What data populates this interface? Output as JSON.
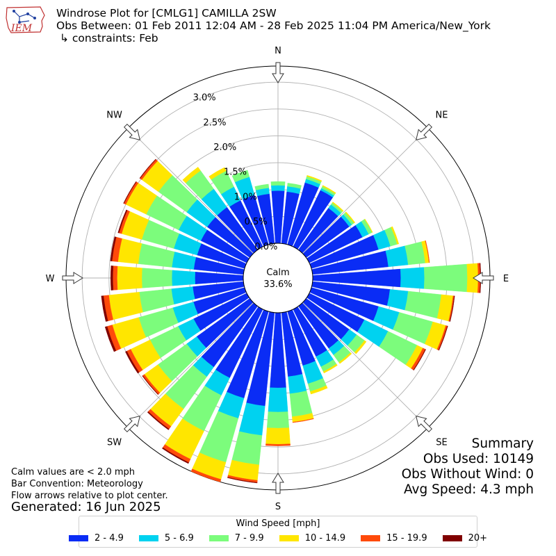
{
  "header": {
    "logo_text": "IEM",
    "title": "Windrose Plot for [CMLG1] CAMILLA 2SW",
    "subtitle": "Obs Between: 01 Feb 2011 12:04 AM - 28 Feb 2025 11:04 PM America/New_York",
    "constraints": "↳ constraints: Feb"
  },
  "notes": {
    "calm_note": "Calm values are < 2.0 mph",
    "bar_convention": "Bar Convention: Meteorology",
    "flow_note": "Flow arrows relative to plot center.",
    "generated": "Generated: 16 Jun 2025"
  },
  "summary": {
    "heading": "Summary",
    "obs_used": "Obs Used: 10149",
    "obs_without_wind": "Obs Without Wind: 0",
    "avg_speed": "Avg Speed: 4.3 mph"
  },
  "legend": {
    "title": "Wind Speed [mph]",
    "items": [
      {
        "label": "2 - 4.9",
        "color": "#0a2cf5"
      },
      {
        "label": "5 - 6.9",
        "color": "#00d2f0"
      },
      {
        "label": "7 - 9.9",
        "color": "#7cfc7c"
      },
      {
        "label": "10 - 14.9",
        "color": "#ffe600"
      },
      {
        "label": "15 - 19.9",
        "color": "#ff4a0a"
      },
      {
        "label": "20+",
        "color": "#800000"
      }
    ]
  },
  "chart_data": {
    "type": "windrose",
    "title": "Windrose Plot for [CMLG1] CAMILLA 2SW",
    "calm_label": "Calm",
    "calm_percent_label": "33.6%",
    "radial_tick_labels": [
      "0.0%",
      "0.5%",
      "1.0%",
      "1.5%",
      "2.0%",
      "2.5%",
      "3.0%"
    ],
    "radial_ticks": [
      0.0,
      0.5,
      1.0,
      1.5,
      2.0,
      2.5,
      3.0
    ],
    "rmax": 3.3,
    "direction_labels": [
      "N",
      "NE",
      "E",
      "SE",
      "S",
      "SW",
      "W",
      "NW"
    ],
    "speed_bins": [
      "2 - 4.9",
      "5 - 6.9",
      "7 - 9.9",
      "10 - 14.9",
      "15 - 19.9",
      "20+"
    ],
    "directions_deg": [
      0,
      10,
      20,
      30,
      40,
      50,
      60,
      70,
      80,
      90,
      100,
      110,
      120,
      130,
      140,
      150,
      160,
      170,
      180,
      190,
      200,
      210,
      220,
      230,
      240,
      250,
      260,
      270,
      280,
      290,
      300,
      310,
      320,
      330,
      340,
      350
    ],
    "cumulative_percent": [
      [
        0.98,
        1.08,
        1.15,
        1.15,
        1.15,
        1.15
      ],
      [
        0.97,
        1.07,
        1.13,
        1.13,
        1.13,
        1.13
      ],
      [
        1.2,
        1.27,
        1.32,
        1.34,
        1.34,
        1.34
      ],
      [
        1.17,
        1.21,
        1.25,
        1.27,
        1.27,
        1.27
      ],
      [
        0.96,
        1.04,
        1.08,
        1.1,
        1.1,
        1.1
      ],
      [
        0.99,
        1.05,
        1.1,
        1.12,
        1.12,
        1.12
      ],
      [
        1.1,
        1.23,
        1.3,
        1.31,
        1.31,
        1.31
      ],
      [
        1.3,
        1.53,
        1.66,
        1.69,
        1.69,
        1.69
      ],
      [
        1.42,
        1.79,
        2.11,
        2.18,
        2.19,
        2.19
      ],
      [
        1.64,
        2.08,
        2.88,
        3.08,
        3.12,
        3.13
      ],
      [
        1.45,
        1.79,
        2.41,
        2.63,
        2.65,
        2.66
      ],
      [
        1.3,
        1.7,
        2.35,
        2.6,
        2.63,
        2.64
      ],
      [
        1.14,
        1.63,
        2.23,
        2.35,
        2.4,
        2.41
      ],
      [
        0.99,
        1.16,
        1.34,
        1.38,
        1.38,
        1.38
      ],
      [
        0.97,
        1.12,
        1.29,
        1.32,
        1.32,
        1.32
      ],
      [
        0.98,
        1.19,
        1.29,
        1.32,
        1.32,
        1.32
      ],
      [
        1.05,
        1.4,
        1.55,
        1.6,
        1.6,
        1.6
      ],
      [
        1.2,
        1.52,
        1.95,
        2.05,
        2.06,
        2.06
      ],
      [
        1.4,
        1.85,
        2.15,
        2.45,
        2.48,
        2.48
      ],
      [
        1.75,
        2.3,
        2.85,
        3.14,
        3.18,
        3.19
      ],
      [
        1.68,
        2.07,
        2.92,
        3.25,
        3.3,
        3.3
      ],
      [
        1.42,
        1.78,
        2.52,
        3.1,
        3.17,
        3.19
      ],
      [
        1.4,
        1.62,
        2.36,
        2.76,
        2.82,
        2.84
      ],
      [
        1.22,
        1.45,
        2.11,
        2.42,
        2.46,
        2.47
      ],
      [
        1.1,
        1.42,
        2.0,
        2.4,
        2.48,
        2.51
      ],
      [
        0.99,
        1.39,
        2.05,
        2.56,
        2.66,
        2.7
      ],
      [
        0.95,
        1.35,
        1.95,
        2.52,
        2.62,
        2.66
      ],
      [
        0.9,
        1.33,
        1.89,
        2.35,
        2.43,
        2.47
      ],
      [
        0.93,
        1.34,
        1.97,
        2.35,
        2.46,
        2.49
      ],
      [
        0.92,
        1.37,
        1.99,
        2.38,
        2.43,
        2.45
      ],
      [
        0.95,
        1.41,
        2.08,
        2.5,
        2.54,
        2.55
      ],
      [
        0.98,
        1.45,
        2.1,
        2.48,
        2.52,
        2.53
      ],
      [
        0.98,
        1.4,
        1.82,
        1.9,
        1.9,
        1.9
      ],
      [
        0.96,
        1.24,
        1.57,
        1.64,
        1.64,
        1.64
      ],
      [
        0.96,
        1.31,
        1.44,
        1.44,
        1.44,
        1.44
      ],
      [
        0.93,
        1.04,
        1.11,
        1.11,
        1.11,
        1.11
      ]
    ]
  }
}
